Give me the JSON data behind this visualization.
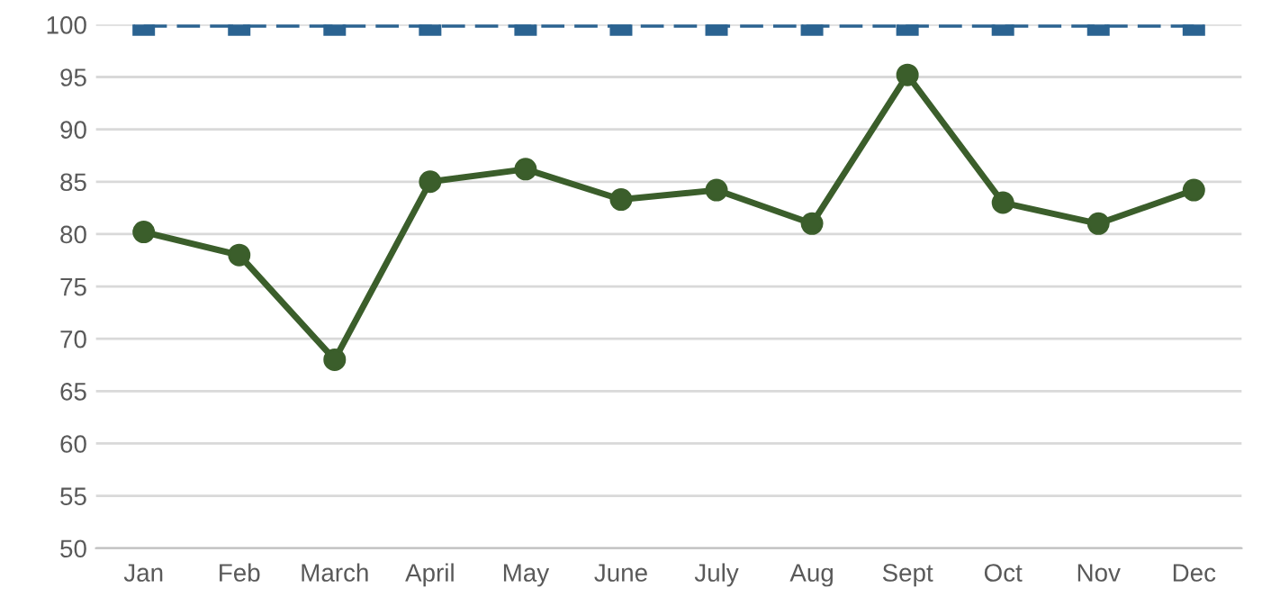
{
  "chart_data": {
    "type": "line",
    "categories": [
      "Jan",
      "Feb",
      "March",
      "April",
      "May",
      "June",
      "July",
      "Aug",
      "Sept",
      "Oct",
      "Nov",
      "Dec"
    ],
    "series": [
      {
        "color": "#2b6391",
        "marker": "square",
        "line_style": "dashed",
        "values": [
          100,
          100,
          100,
          100,
          100,
          100,
          100,
          100,
          100,
          100,
          100,
          100
        ]
      },
      {
        "color": "#3b5e2b",
        "marker": "circle",
        "line_style": "solid",
        "values": [
          80.2,
          78,
          68,
          85,
          86.2,
          83.3,
          84.2,
          81,
          95.2,
          83,
          81,
          84.2
        ]
      }
    ],
    "ylim": [
      50,
      100
    ],
    "yticks": [
      50,
      55,
      60,
      65,
      70,
      75,
      80,
      85,
      90,
      95,
      100
    ],
    "grid": "y"
  }
}
